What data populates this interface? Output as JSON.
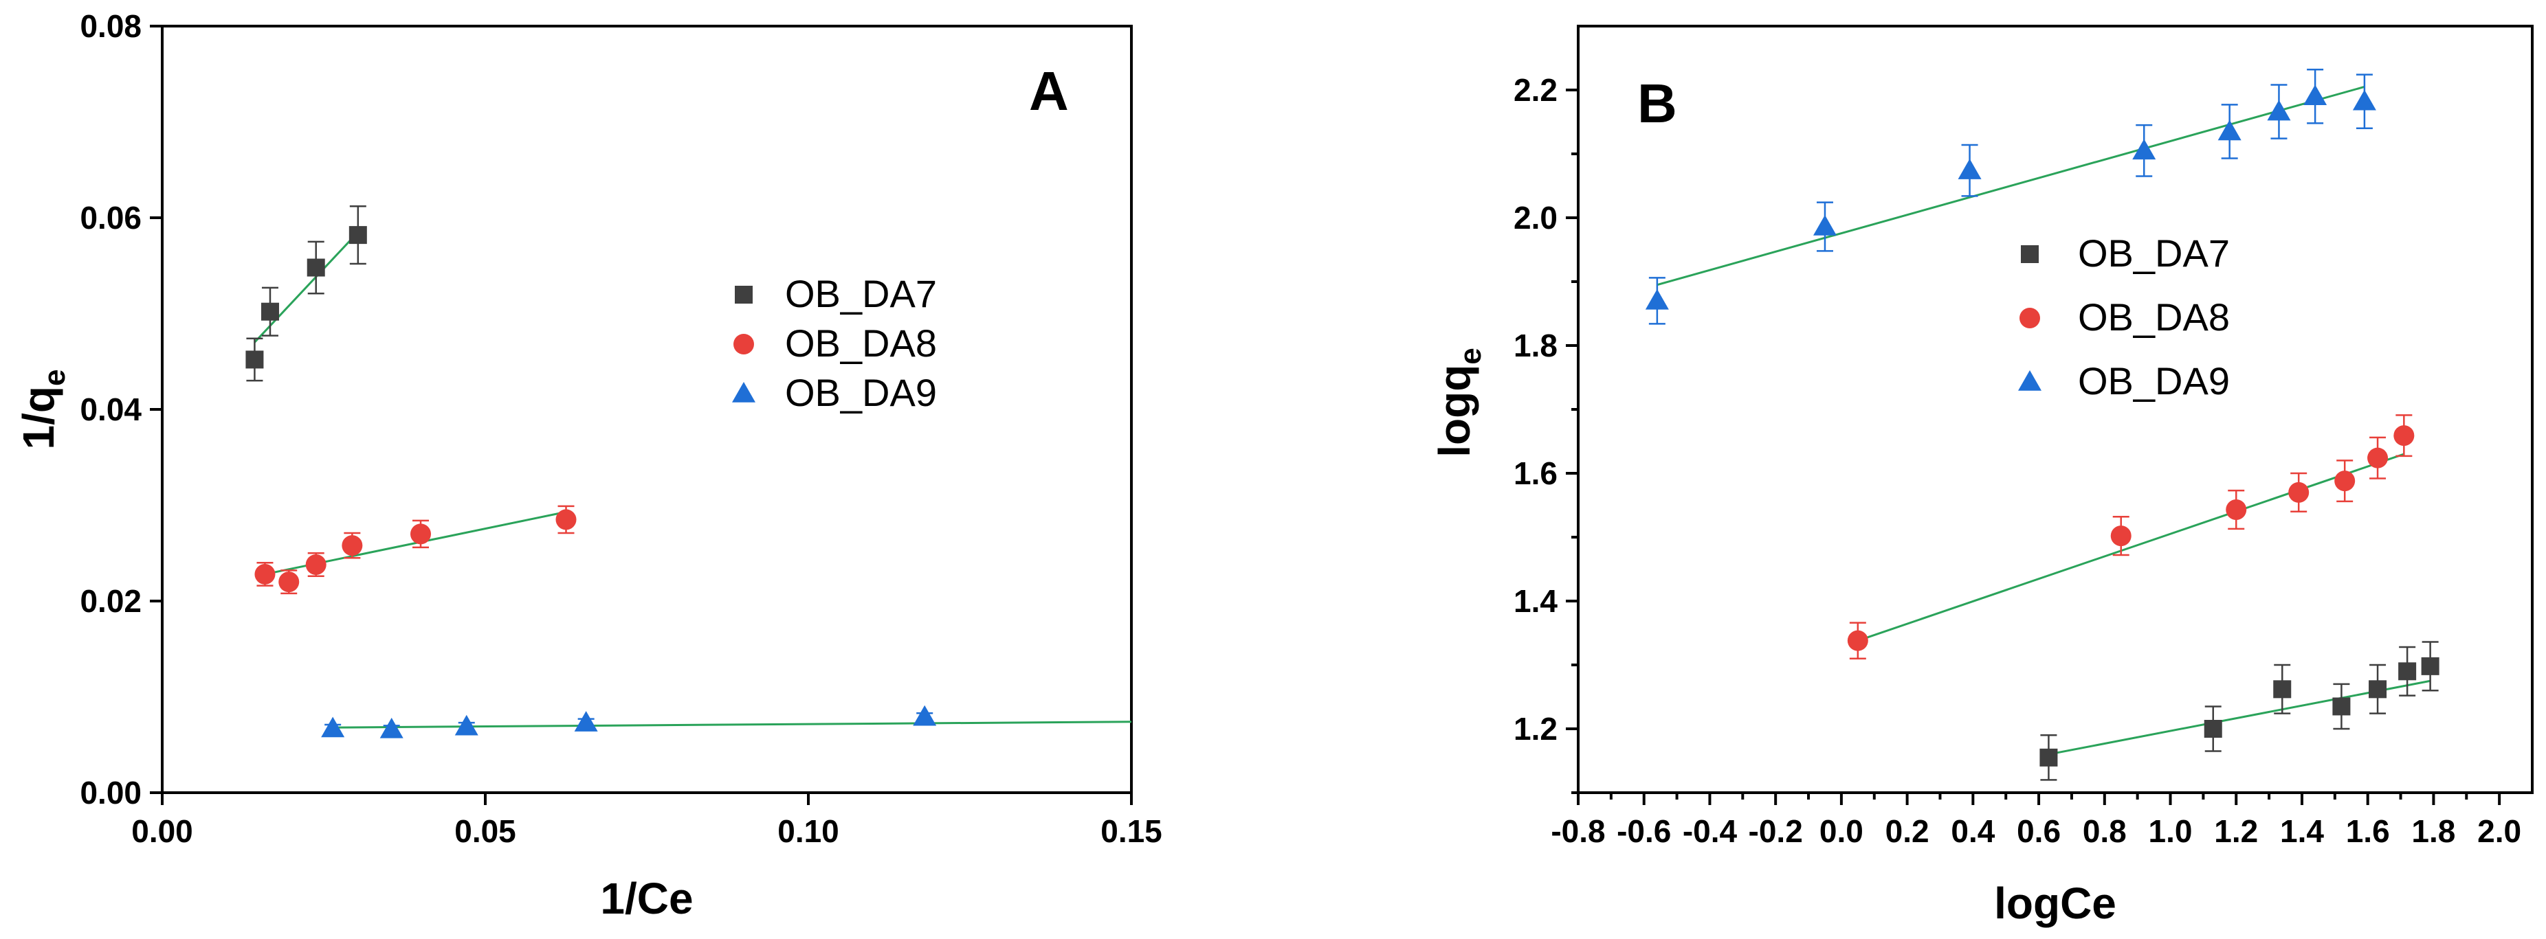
{
  "colors": {
    "OB_DA7": "#3f3f3f",
    "OB_DA8": "#e8403a",
    "OB_DA9": "#1f6fd6",
    "fit": "#2aa35a"
  },
  "chart_data": [
    {
      "type": "scatter",
      "panel_label": "A",
      "xlabel": "1/Ce",
      "ylabel": "1/q",
      "ylabel_subscript": "e",
      "xlim": [
        0.0,
        0.15
      ],
      "ylim": [
        0.0,
        0.08
      ],
      "xticks": [
        0.0,
        0.05,
        0.1,
        0.15
      ],
      "xtick_labels": [
        "0.00",
        "0.05",
        "0.10",
        "0.15"
      ],
      "yticks": [
        0.0,
        0.02,
        0.04,
        0.06,
        0.08
      ],
      "ytick_labels": [
        "0.00",
        "0.02",
        "0.04",
        "0.06",
        "0.08"
      ],
      "legend_position": "center-right",
      "series": [
        {
          "name": "OB_DA7",
          "marker": "square",
          "x": [
            0.0143,
            0.0167,
            0.0238,
            0.0303
          ],
          "y": [
            0.0452,
            0.0502,
            0.0548,
            0.0582
          ],
          "err": [
            0.0022,
            0.0025,
            0.0027,
            0.003
          ],
          "fit": [
            [
              0.0143,
              0.047
            ],
            [
              0.0303,
              0.0585
            ]
          ]
        },
        {
          "name": "OB_DA8",
          "marker": "circle",
          "x": [
            0.0159,
            0.0196,
            0.0238,
            0.0294,
            0.04,
            0.0625
          ],
          "y": [
            0.0228,
            0.022,
            0.0238,
            0.0258,
            0.027,
            0.0285
          ],
          "err": [
            0.0012,
            0.0012,
            0.0012,
            0.0013,
            0.0014,
            0.0014
          ],
          "fit": [
            [
              0.0159,
              0.0228
            ],
            [
              0.0625,
              0.0293
            ]
          ]
        },
        {
          "name": "OB_DA9",
          "marker": "triangle",
          "x": [
            0.0264,
            0.0355,
            0.0471,
            0.0656,
            0.118
          ],
          "y": [
            0.0067,
            0.0066,
            0.0069,
            0.0073,
            0.0079
          ],
          "err": [
            0.0004,
            0.0004,
            0.0004,
            0.0004,
            0.0004
          ],
          "fit": [
            [
              0.0264,
              0.0068
            ],
            [
              0.15,
              0.0074
            ]
          ]
        }
      ]
    },
    {
      "type": "scatter",
      "panel_label": "B",
      "xlabel": "logCe",
      "ylabel": "logq",
      "ylabel_subscript": "e",
      "xlim": [
        -0.8,
        2.1
      ],
      "ylim": [
        1.1,
        2.3
      ],
      "xticks": [
        -0.8,
        -0.6,
        -0.4,
        -0.2,
        0.0,
        0.2,
        0.4,
        0.6,
        0.8,
        1.0,
        1.2,
        1.4,
        1.6,
        1.8,
        2.0
      ],
      "xtick_labels": [
        "-0.8",
        "-0.6",
        "-0.4",
        "-0.2",
        "0.0",
        "0.2",
        "0.4",
        "0.6",
        "0.8",
        "1.0",
        "1.2",
        "1.4",
        "1.6",
        "1.8",
        "2.0"
      ],
      "yticks": [
        1.2,
        1.4,
        1.6,
        1.8,
        2.0,
        2.2
      ],
      "ytick_labels": [
        "1.2",
        "1.4",
        "1.6",
        "1.8",
        "2.0",
        "2.2"
      ],
      "legend_position": "center",
      "series": [
        {
          "name": "OB_DA7",
          "marker": "square",
          "x": [
            0.63,
            1.13,
            1.34,
            1.52,
            1.63,
            1.72,
            1.79
          ],
          "y": [
            1.155,
            1.2,
            1.262,
            1.235,
            1.262,
            1.29,
            1.298
          ],
          "err": [
            0.035,
            0.035,
            0.038,
            0.035,
            0.038,
            0.038,
            0.038
          ],
          "fit": [
            [
              0.63,
              1.16
            ],
            [
              1.79,
              1.275
            ]
          ]
        },
        {
          "name": "OB_DA8",
          "marker": "circle",
          "x": [
            0.05,
            0.85,
            1.2,
            1.39,
            1.53,
            1.63,
            1.71
          ],
          "y": [
            1.338,
            1.502,
            1.543,
            1.57,
            1.588,
            1.624,
            1.659
          ],
          "err": [
            0.028,
            0.03,
            0.03,
            0.03,
            0.032,
            0.032,
            0.032
          ],
          "fit": [
            [
              0.05,
              1.338
            ],
            [
              1.71,
              1.63
            ]
          ]
        },
        {
          "name": "OB_DA9",
          "marker": "triangle",
          "x": [
            -0.56,
            -0.05,
            0.39,
            0.92,
            1.18,
            1.33,
            1.44,
            1.59
          ],
          "y": [
            1.87,
            1.986,
            2.074,
            2.105,
            2.135,
            2.166,
            2.19,
            2.182
          ],
          "err": [
            0.036,
            0.038,
            0.04,
            0.04,
            0.042,
            0.042,
            0.042,
            0.042
          ],
          "fit": [
            [
              -0.56,
              1.895
            ],
            [
              1.59,
              2.205
            ]
          ]
        }
      ]
    }
  ]
}
